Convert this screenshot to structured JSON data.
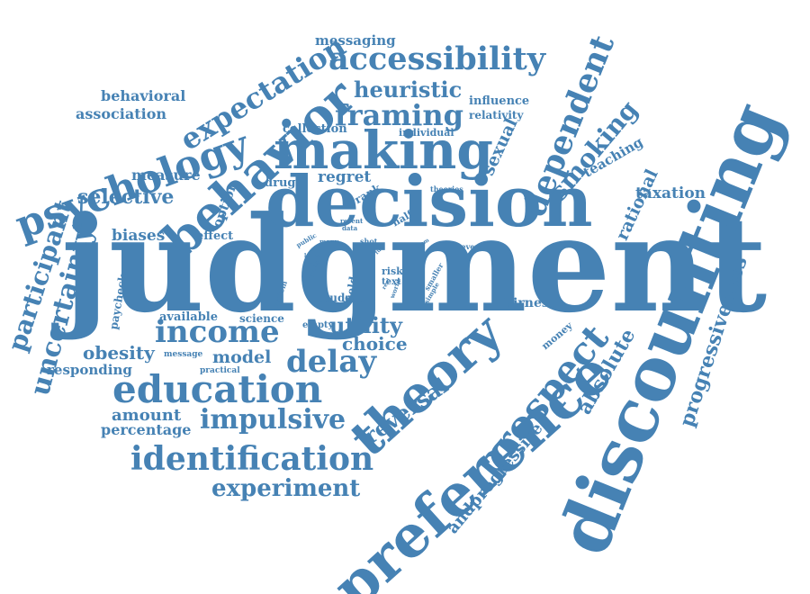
{
  "color": "#4682b4",
  "words": [
    "judgment",
    "decision",
    "discounting",
    "preference",
    "theory",
    "making",
    "behavior",
    "psychology",
    "prospect",
    "education",
    "income",
    "accessibility",
    "dependent",
    "expectation",
    "framing",
    "identification",
    "impulsive",
    "uncertainty",
    "participant",
    "delay",
    "smoking",
    "heuristic",
    "experiment",
    "utility",
    "progressiveness",
    "reversal",
    "absolute",
    "selective",
    "andprogressive",
    "rational",
    "sexual",
    "choice",
    "obesity",
    "model",
    "amount",
    "regret",
    "biases",
    "association",
    "behavioral",
    "measure",
    "messaging",
    "percentage",
    "responding",
    "taxation",
    "teaching",
    "collection",
    "influence",
    "relativity",
    "available",
    "option",
    "effect",
    "drug",
    "fairness",
    "rank",
    "science",
    "student",
    "paycheck",
    "half",
    "individual",
    "money",
    "empty",
    "field",
    "risk",
    "text",
    "practical",
    "message",
    "theories",
    "several",
    "smaller",
    "simple",
    "shot",
    "many",
    "system",
    "lower",
    "world",
    "public",
    "real",
    "recent",
    "data",
    "loose",
    "more",
    "full",
    "item"
  ]
}
